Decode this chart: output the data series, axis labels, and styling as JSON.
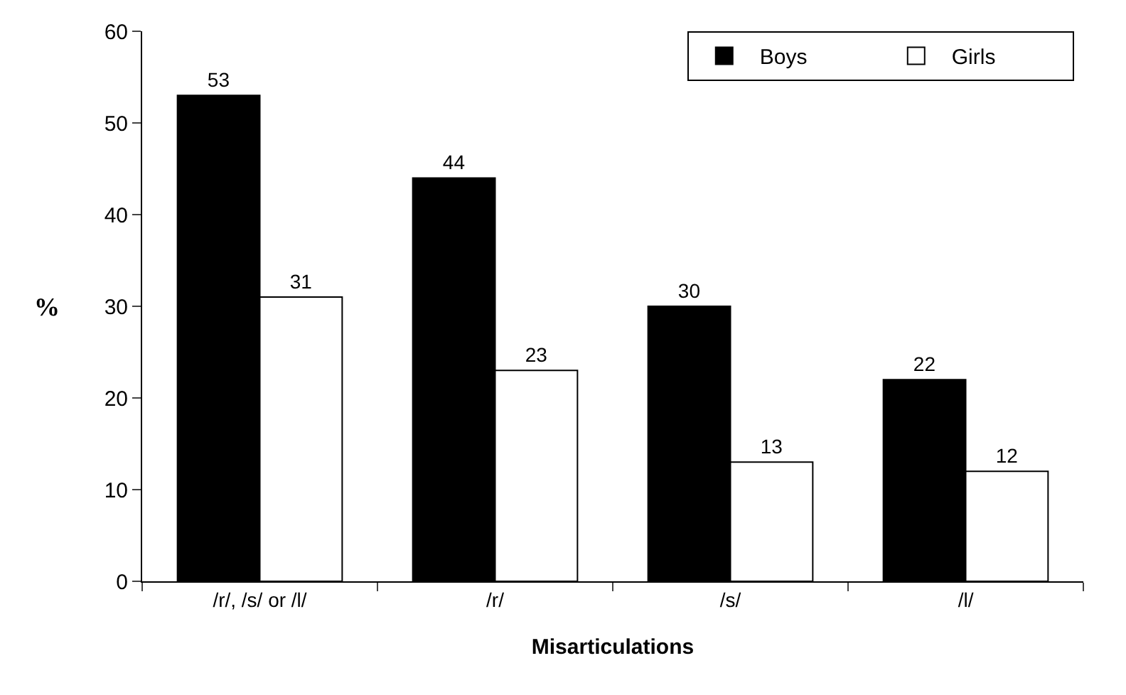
{
  "chart_data": {
    "type": "bar",
    "xlabel": "Misarticulations",
    "ylabel": "%",
    "categories": [
      "/r/, /s/ or /l/",
      "/r/",
      "/s/",
      "/l/"
    ],
    "series": [
      {
        "name": "Boys",
        "color": "#000000",
        "values": [
          53,
          44,
          30,
          22
        ]
      },
      {
        "name": "Girls",
        "color": "#ffffff",
        "values": [
          31,
          23,
          13,
          12
        ]
      }
    ],
    "ylim": [
      0,
      60
    ],
    "yticks": [
      0,
      10,
      20,
      30,
      40,
      50,
      60
    ],
    "legend": "top right",
    "data_labels": true
  }
}
